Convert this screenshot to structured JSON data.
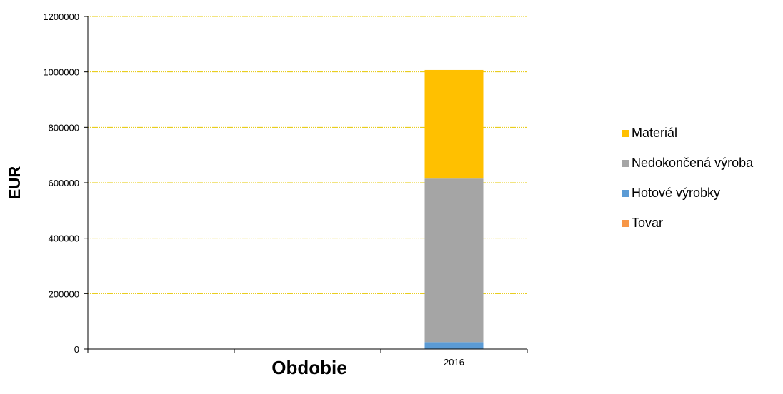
{
  "chart_data": {
    "type": "bar",
    "stacked": true,
    "categories": [
      "",
      "",
      "2016"
    ],
    "series": [
      {
        "name": "Tovar",
        "values": [
          0,
          0,
          0
        ],
        "color": "#f79646"
      },
      {
        "name": "Hotové výrobky",
        "values": [
          0,
          0,
          25000
        ],
        "color": "#5b9bd5"
      },
      {
        "name": "Nedokončená výroba",
        "values": [
          0,
          0,
          590000
        ],
        "color": "#a5a5a5"
      },
      {
        "name": "Materiál",
        "values": [
          0,
          0,
          392000
        ],
        "color": "#ffc000"
      }
    ],
    "legend_order": [
      "Materiál",
      "Nedokončená výroba",
      "Hotové výrobky",
      "Tovar"
    ],
    "title": "",
    "xlabel": "Obdobie",
    "ylabel": "EUR",
    "ylim": [
      0,
      1200000
    ],
    "yticks": [
      0,
      200000,
      400000,
      600000,
      800000,
      1000000,
      1200000
    ],
    "grid": true,
    "grid_color": "#e6c800",
    "legend_position": "right"
  }
}
